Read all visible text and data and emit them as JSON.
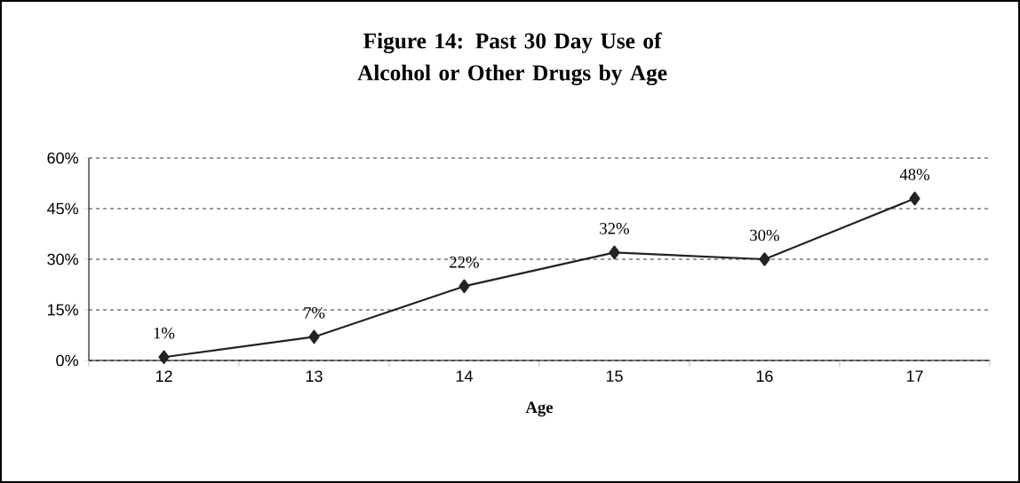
{
  "chart_data": {
    "type": "line",
    "title": "Figure 14:   Past 30 Day Use of Alcohol or Other Drugs by Age",
    "xlabel": "Age",
    "categories": [
      "12",
      "13",
      "14",
      "15",
      "16",
      "17"
    ],
    "series": [
      {
        "color": "#222222",
        "values": [
          1,
          7,
          22,
          32,
          30,
          48
        ],
        "value_labels": [
          "1%",
          "7%",
          "22%",
          "32%",
          "30%",
          "48%"
        ]
      }
    ],
    "ylim": [
      0,
      60
    ],
    "yticks": [
      {
        "value": 0,
        "label": "0%"
      },
      {
        "value": 15,
        "label": "15%"
      },
      {
        "value": 30,
        "label": "30%"
      },
      {
        "value": 45,
        "label": "45%"
      },
      {
        "value": 60,
        "label": "60%"
      }
    ],
    "grid": "y",
    "marker": "diamond",
    "line_style": "solid"
  }
}
